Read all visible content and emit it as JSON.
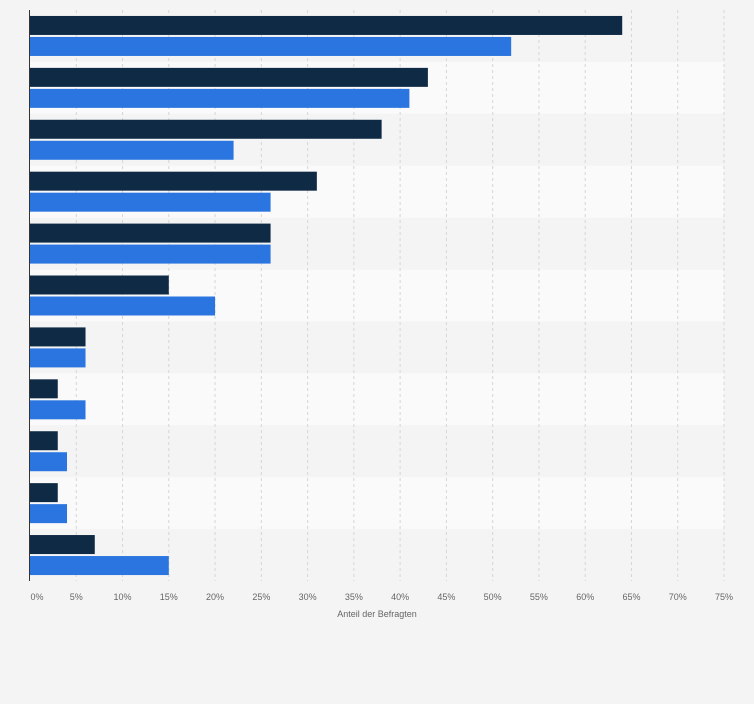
{
  "chart_data": {
    "type": "bar",
    "orientation": "horizontal",
    "categories": [
      "",
      "",
      "",
      "",
      "",
      "",
      "",
      "",
      "",
      "",
      ""
    ],
    "series": [
      {
        "color": "#0f2a45",
        "values": [
          64,
          43,
          38,
          31,
          26,
          15,
          6,
          3,
          3,
          3,
          7
        ]
      },
      {
        "color": "#2a75e0",
        "values": [
          52,
          41,
          22,
          26,
          26,
          20,
          6,
          6,
          4,
          4,
          15
        ]
      }
    ],
    "xlabel": "Anteil der Befragten",
    "xlim": [
      0,
      75
    ],
    "xticks": [
      {
        "value": 0,
        "label": "0%"
      },
      {
        "value": 5,
        "label": "5%"
      },
      {
        "value": 10,
        "label": "10%"
      },
      {
        "value": 15,
        "label": "15%"
      },
      {
        "value": 20,
        "label": "20%"
      },
      {
        "value": 25,
        "label": "25%"
      },
      {
        "value": 30,
        "label": "30%"
      },
      {
        "value": 35,
        "label": "35%"
      },
      {
        "value": 40,
        "label": "40%"
      },
      {
        "value": 45,
        "label": "45%"
      },
      {
        "value": 50,
        "label": "50%"
      },
      {
        "value": 55,
        "label": "55%"
      },
      {
        "value": 60,
        "label": "60%"
      },
      {
        "value": 65,
        "label": "65%"
      },
      {
        "value": 70,
        "label": "70%"
      },
      {
        "value": 75,
        "label": "75%"
      }
    ],
    "grid": true,
    "legend": "none"
  }
}
